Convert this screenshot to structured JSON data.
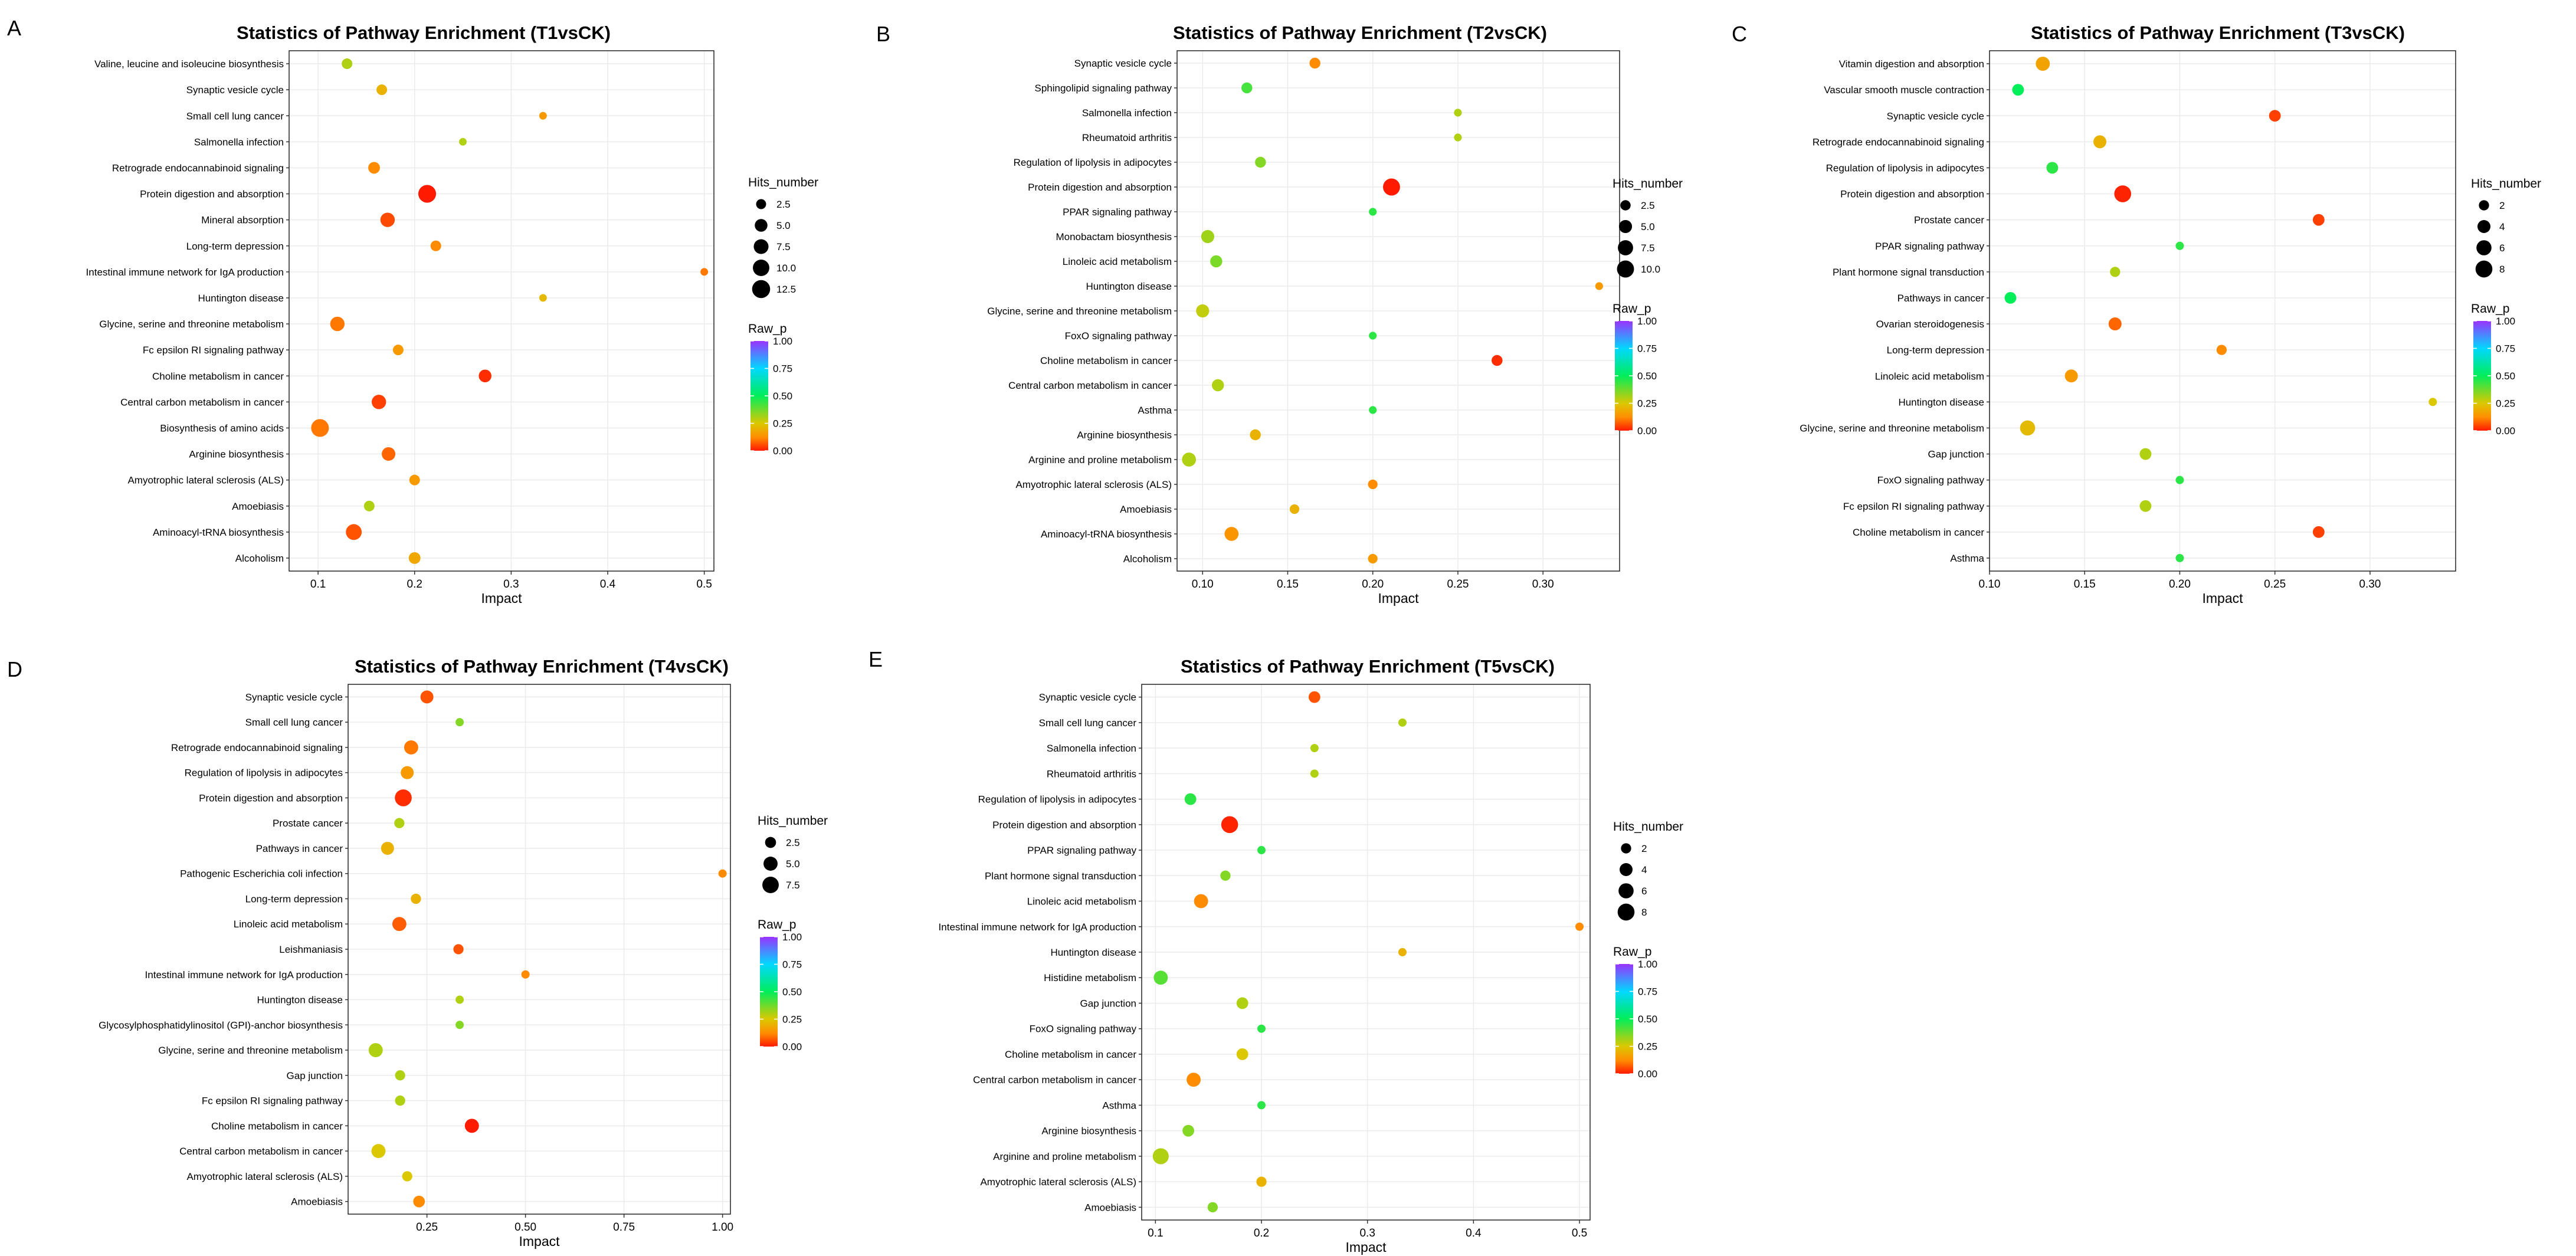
{
  "colors": {
    "low": "#ff1a00",
    "c025": "#00ff66",
    "c050": "#00ff66",
    "c075": "#00d8ff",
    "high": "#9932ff",
    "grid": "#ebebeb",
    "frame": "#222222"
  },
  "chart_data": [
    {
      "id": "A",
      "panel_label": "A",
      "type": "scatter",
      "title": "Statistics of Pathway Enrichment (T1vsCK)",
      "xlabel": "Impact",
      "ylabel": "",
      "xlim": [
        0.07,
        0.51
      ],
      "xticks": [
        0.1,
        0.2,
        0.3,
        0.4,
        0.5
      ],
      "xtick_labels": [
        "0.1",
        "0.2",
        "0.3",
        "0.4",
        "0.5"
      ],
      "size_legend": {
        "title": "Hits_number",
        "values": [
          2.5,
          5.0,
          7.5,
          10.0,
          12.5
        ],
        "labels": [
          "2.5",
          "5.0",
          "7.5",
          "10.0",
          "12.5"
        ],
        "max": 14
      },
      "color_legend": {
        "title": "Raw_p",
        "ticks": [
          1.0,
          0.75,
          0.5,
          0.25,
          0.0
        ],
        "labels": [
          "1.00",
          "0.75",
          "0.50",
          "0.25",
          "0.00"
        ]
      },
      "points": [
        {
          "pathway": "Valine, leucine and isoleucine biosynthesis",
          "impact": 0.13,
          "hits": 3,
          "raw_p": 0.3
        },
        {
          "pathway": "Synaptic vesicle cycle",
          "impact": 0.166,
          "hits": 3,
          "raw_p": 0.2
        },
        {
          "pathway": "Small cell lung cancer",
          "impact": 0.333,
          "hits": 1,
          "raw_p": 0.15
        },
        {
          "pathway": "Salmonella infection",
          "impact": 0.25,
          "hits": 1,
          "raw_p": 0.3
        },
        {
          "pathway": "Retrograde endocannabinoid signaling",
          "impact": 0.158,
          "hits": 4,
          "raw_p": 0.12
        },
        {
          "pathway": "Protein digestion and absorption",
          "impact": 0.213,
          "hits": 12,
          "raw_p": 0.0
        },
        {
          "pathway": "Mineral absorption",
          "impact": 0.172,
          "hits": 7,
          "raw_p": 0.05
        },
        {
          "pathway": "Long-term depression",
          "impact": 0.222,
          "hits": 3,
          "raw_p": 0.12
        },
        {
          "pathway": "Intestinal immune network for IgA production",
          "impact": 0.5,
          "hits": 1,
          "raw_p": 0.1
        },
        {
          "pathway": "Huntington disease",
          "impact": 0.333,
          "hits": 1,
          "raw_p": 0.22
        },
        {
          "pathway": "Glycine, serine and threonine metabolism",
          "impact": 0.12,
          "hits": 7,
          "raw_p": 0.1
        },
        {
          "pathway": "Fc epsilon RI signaling pathway",
          "impact": 0.183,
          "hits": 3,
          "raw_p": 0.15
        },
        {
          "pathway": "Choline metabolism in cancer",
          "impact": 0.273,
          "hits": 5,
          "raw_p": 0.02
        },
        {
          "pathway": "Central carbon metabolism in cancer",
          "impact": 0.163,
          "hits": 7,
          "raw_p": 0.04
        },
        {
          "pathway": "Biosynthesis of amino acids",
          "impact": 0.102,
          "hits": 12,
          "raw_p": 0.1
        },
        {
          "pathway": "Arginine biosynthesis",
          "impact": 0.173,
          "hits": 6,
          "raw_p": 0.08
        },
        {
          "pathway": "Amyotrophic lateral sclerosis (ALS)",
          "impact": 0.2,
          "hits": 3,
          "raw_p": 0.15
        },
        {
          "pathway": "Amoebiasis",
          "impact": 0.153,
          "hits": 3,
          "raw_p": 0.3
        },
        {
          "pathway": "Aminoacyl-tRNA biosynthesis",
          "impact": 0.137,
          "hits": 9,
          "raw_p": 0.06
        },
        {
          "pathway": "Alcoholism",
          "impact": 0.2,
          "hits": 4,
          "raw_p": 0.18
        }
      ]
    },
    {
      "id": "B",
      "panel_label": "B",
      "type": "scatter",
      "title": "Statistics of Pathway Enrichment (T2vsCK)",
      "xlabel": "Impact",
      "ylabel": "",
      "xlim": [
        0.085,
        0.345
      ],
      "xticks": [
        0.1,
        0.15,
        0.2,
        0.25,
        0.3
      ],
      "xtick_labels": [
        "0.10",
        "0.15",
        "0.20",
        "0.25",
        "0.30"
      ],
      "size_legend": {
        "title": "Hits_number",
        "values": [
          2.5,
          5.0,
          7.5,
          10.0
        ],
        "labels": [
          "2.5",
          "5.0",
          "7.5",
          "10.0"
        ],
        "max": 11
      },
      "color_legend": {
        "title": "Raw_p",
        "ticks": [
          1.0,
          0.75,
          0.5,
          0.25,
          0.0
        ],
        "labels": [
          "1.00",
          "0.75",
          "0.50",
          "0.25",
          "0.00"
        ]
      },
      "points": [
        {
          "pathway": "Synaptic vesicle cycle",
          "impact": 0.166,
          "hits": 3,
          "raw_p": 0.12
        },
        {
          "pathway": "Sphingolipid signaling pathway",
          "impact": 0.126,
          "hits": 3,
          "raw_p": 0.42
        },
        {
          "pathway": "Salmonella infection",
          "impact": 0.25,
          "hits": 1,
          "raw_p": 0.3
        },
        {
          "pathway": "Rheumatoid arthritis",
          "impact": 0.25,
          "hits": 1,
          "raw_p": 0.3
        },
        {
          "pathway": "Regulation of lipolysis in adipocytes",
          "impact": 0.134,
          "hits": 3,
          "raw_p": 0.35
        },
        {
          "pathway": "Protein digestion and absorption",
          "impact": 0.211,
          "hits": 10,
          "raw_p": 0.0
        },
        {
          "pathway": "PPAR signaling pathway",
          "impact": 0.2,
          "hits": 1,
          "raw_p": 0.45
        },
        {
          "pathway": "Monobactam biosynthesis",
          "impact": 0.103,
          "hits": 5,
          "raw_p": 0.32
        },
        {
          "pathway": "Linoleic acid metabolism",
          "impact": 0.108,
          "hits": 4,
          "raw_p": 0.36
        },
        {
          "pathway": "Huntington disease",
          "impact": 0.333,
          "hits": 1,
          "raw_p": 0.15
        },
        {
          "pathway": "Glycine, serine and threonine metabolism",
          "impact": 0.1,
          "hits": 5,
          "raw_p": 0.28
        },
        {
          "pathway": "FoxO signaling pathway",
          "impact": 0.2,
          "hits": 1,
          "raw_p": 0.45
        },
        {
          "pathway": "Choline metabolism in cancer",
          "impact": 0.273,
          "hits": 3,
          "raw_p": 0.02
        },
        {
          "pathway": "Central carbon metabolism in cancer",
          "impact": 0.109,
          "hits": 4,
          "raw_p": 0.3
        },
        {
          "pathway": "Asthma",
          "impact": 0.2,
          "hits": 1,
          "raw_p": 0.45
        },
        {
          "pathway": "Arginine biosynthesis",
          "impact": 0.131,
          "hits": 3,
          "raw_p": 0.2
        },
        {
          "pathway": "Arginine and proline metabolism",
          "impact": 0.092,
          "hits": 6,
          "raw_p": 0.3
        },
        {
          "pathway": "Amyotrophic lateral sclerosis (ALS)",
          "impact": 0.2,
          "hits": 2,
          "raw_p": 0.12
        },
        {
          "pathway": "Amoebiasis",
          "impact": 0.154,
          "hits": 2,
          "raw_p": 0.2
        },
        {
          "pathway": "Aminoacyl-tRNA biosynthesis",
          "impact": 0.117,
          "hits": 6,
          "raw_p": 0.14
        },
        {
          "pathway": "Alcoholism",
          "impact": 0.2,
          "hits": 2,
          "raw_p": 0.15
        }
      ]
    },
    {
      "id": "C",
      "panel_label": "C",
      "type": "scatter",
      "title": "Statistics of Pathway Enrichment (T3vsCK)",
      "xlabel": "Impact",
      "ylabel": "",
      "xlim": [
        0.1,
        0.345
      ],
      "xticks": [
        0.1,
        0.15,
        0.2,
        0.25,
        0.3
      ],
      "xtick_labels": [
        "0.10",
        "0.15",
        "0.20",
        "0.25",
        "0.30"
      ],
      "size_legend": {
        "title": "Hits_number",
        "values": [
          2,
          4,
          6,
          8
        ],
        "labels": [
          "2",
          "4",
          "6",
          "8"
        ],
        "max": 9
      },
      "color_legend": {
        "title": "Raw_p",
        "ticks": [
          1.0,
          0.75,
          0.5,
          0.25,
          0.0
        ],
        "labels": [
          "1.00",
          "0.75",
          "0.50",
          "0.25",
          "0.00"
        ]
      },
      "points": [
        {
          "pathway": "Vitamin digestion and absorption",
          "impact": 0.128,
          "hits": 5,
          "raw_p": 0.17
        },
        {
          "pathway": "Vascular smooth muscle contraction",
          "impact": 0.115,
          "hits": 3,
          "raw_p": 0.5
        },
        {
          "pathway": "Synaptic vesicle cycle",
          "impact": 0.25,
          "hits": 3,
          "raw_p": 0.04
        },
        {
          "pathway": "Retrograde endocannabinoid signaling",
          "impact": 0.158,
          "hits": 4,
          "raw_p": 0.2
        },
        {
          "pathway": "Regulation of lipolysis in adipocytes",
          "impact": 0.133,
          "hits": 3,
          "raw_p": 0.45
        },
        {
          "pathway": "Protein digestion and absorption",
          "impact": 0.17,
          "hits": 8,
          "raw_p": 0.01
        },
        {
          "pathway": "Prostate cancer",
          "impact": 0.273,
          "hits": 3,
          "raw_p": 0.04
        },
        {
          "pathway": "PPAR signaling pathway",
          "impact": 0.2,
          "hits": 1,
          "raw_p": 0.45
        },
        {
          "pathway": "Plant hormone signal transduction",
          "impact": 0.166,
          "hits": 2,
          "raw_p": 0.3
        },
        {
          "pathway": "Pathways in cancer",
          "impact": 0.111,
          "hits": 3,
          "raw_p": 0.5
        },
        {
          "pathway": "Ovarian steroidogenesis",
          "impact": 0.166,
          "hits": 4,
          "raw_p": 0.08
        },
        {
          "pathway": "Long-term depression",
          "impact": 0.222,
          "hits": 2,
          "raw_p": 0.12
        },
        {
          "pathway": "Linoleic acid metabolism",
          "impact": 0.143,
          "hits": 4,
          "raw_p": 0.15
        },
        {
          "pathway": "Huntington disease",
          "impact": 0.333,
          "hits": 1,
          "raw_p": 0.25
        },
        {
          "pathway": "Glycine, serine and threonine metabolism",
          "impact": 0.12,
          "hits": 6,
          "raw_p": 0.22
        },
        {
          "pathway": "Gap junction",
          "impact": 0.182,
          "hits": 3,
          "raw_p": 0.3
        },
        {
          "pathway": "FoxO signaling pathway",
          "impact": 0.2,
          "hits": 1,
          "raw_p": 0.45
        },
        {
          "pathway": "Fc epsilon RI signaling pathway",
          "impact": 0.182,
          "hits": 3,
          "raw_p": 0.3
        },
        {
          "pathway": "Choline metabolism in cancer",
          "impact": 0.273,
          "hits": 3,
          "raw_p": 0.04
        },
        {
          "pathway": "Asthma",
          "impact": 0.2,
          "hits": 1,
          "raw_p": 0.45
        }
      ]
    },
    {
      "id": "D",
      "panel_label": "D",
      "type": "scatter",
      "title": "Statistics of Pathway Enrichment (T4vsCK)",
      "xlabel": "Impact",
      "ylabel": "",
      "xlim": [
        0.05,
        1.02
      ],
      "xticks": [
        0.25,
        0.5,
        0.75,
        1.0
      ],
      "xtick_labels": [
        "0.25",
        "0.50",
        "0.75",
        "1.00"
      ],
      "size_legend": {
        "title": "Hits_number",
        "values": [
          2.5,
          5.0,
          7.5
        ],
        "labels": [
          "2.5",
          "5.0",
          "7.5"
        ],
        "max": 9
      },
      "color_legend": {
        "title": "Raw_p",
        "ticks": [
          1.0,
          0.75,
          0.5,
          0.25,
          0.0
        ],
        "labels": [
          "1.00",
          "0.75",
          "0.50",
          "0.25",
          "0.00"
        ]
      },
      "points": [
        {
          "pathway": "Synaptic vesicle cycle",
          "impact": 0.25,
          "hits": 4,
          "raw_p": 0.06
        },
        {
          "pathway": "Small cell lung cancer",
          "impact": 0.333,
          "hits": 1,
          "raw_p": 0.35
        },
        {
          "pathway": "Retrograde endocannabinoid signaling",
          "impact": 0.21,
          "hits": 5,
          "raw_p": 0.1
        },
        {
          "pathway": "Regulation of lipolysis in adipocytes",
          "impact": 0.2,
          "hits": 4,
          "raw_p": 0.15
        },
        {
          "pathway": "Protein digestion and absorption",
          "impact": 0.19,
          "hits": 8,
          "raw_p": 0.02
        },
        {
          "pathway": "Prostate cancer",
          "impact": 0.18,
          "hits": 2,
          "raw_p": 0.3
        },
        {
          "pathway": "Pathways in cancer",
          "impact": 0.15,
          "hits": 4,
          "raw_p": 0.2
        },
        {
          "pathway": "Pathogenic Escherichia coli infection",
          "impact": 1.0,
          "hits": 1,
          "raw_p": 0.12
        },
        {
          "pathway": "Long-term depression",
          "impact": 0.222,
          "hits": 2,
          "raw_p": 0.2
        },
        {
          "pathway": "Linoleic acid metabolism",
          "impact": 0.18,
          "hits": 5,
          "raw_p": 0.07
        },
        {
          "pathway": "Leishmaniasis",
          "impact": 0.33,
          "hits": 2,
          "raw_p": 0.06
        },
        {
          "pathway": "Intestinal immune network for IgA production",
          "impact": 0.5,
          "hits": 1,
          "raw_p": 0.12
        },
        {
          "pathway": "Huntington disease",
          "impact": 0.333,
          "hits": 1,
          "raw_p": 0.3
        },
        {
          "pathway": "Glycosylphosphatidylinositol (GPI)-anchor biosynthesis",
          "impact": 0.333,
          "hits": 1,
          "raw_p": 0.35
        },
        {
          "pathway": "Glycine, serine and threonine metabolism",
          "impact": 0.12,
          "hits": 5,
          "raw_p": 0.3
        },
        {
          "pathway": "Gap junction",
          "impact": 0.182,
          "hits": 2,
          "raw_p": 0.3
        },
        {
          "pathway": "Fc epsilon RI signaling pathway",
          "impact": 0.182,
          "hits": 2,
          "raw_p": 0.3
        },
        {
          "pathway": "Choline metabolism in cancer",
          "impact": 0.364,
          "hits": 5,
          "raw_p": 0.0
        },
        {
          "pathway": "Central carbon metabolism in cancer",
          "impact": 0.127,
          "hits": 5,
          "raw_p": 0.25
        },
        {
          "pathway": "Amyotrophic lateral sclerosis (ALS)",
          "impact": 0.2,
          "hits": 2,
          "raw_p": 0.25
        },
        {
          "pathway": "Amoebiasis",
          "impact": 0.23,
          "hits": 3,
          "raw_p": 0.12
        }
      ]
    },
    {
      "id": "E",
      "panel_label": "E",
      "type": "scatter",
      "title": "Statistics of Pathway Enrichment (T5vsCK)",
      "xlabel": "Impact",
      "ylabel": "",
      "xlim": [
        0.087,
        0.51
      ],
      "xticks": [
        0.1,
        0.2,
        0.3,
        0.4,
        0.5
      ],
      "xtick_labels": [
        "0.1",
        "0.2",
        "0.3",
        "0.4",
        "0.5"
      ],
      "size_legend": {
        "title": "Hits_number",
        "values": [
          2,
          4,
          6,
          8
        ],
        "labels": [
          "2",
          "4",
          "6",
          "8"
        ],
        "max": 9
      },
      "color_legend": {
        "title": "Raw_p",
        "ticks": [
          1.0,
          0.75,
          0.5,
          0.25,
          0.0
        ],
        "labels": [
          "1.00",
          "0.75",
          "0.50",
          "0.25",
          "0.00"
        ]
      },
      "points": [
        {
          "pathway": "Synaptic vesicle cycle",
          "impact": 0.25,
          "hits": 3,
          "raw_p": 0.06
        },
        {
          "pathway": "Small cell lung cancer",
          "impact": 0.333,
          "hits": 1,
          "raw_p": 0.3
        },
        {
          "pathway": "Salmonella infection",
          "impact": 0.25,
          "hits": 1,
          "raw_p": 0.3
        },
        {
          "pathway": "Rheumatoid arthritis",
          "impact": 0.25,
          "hits": 1,
          "raw_p": 0.3
        },
        {
          "pathway": "Regulation of lipolysis in adipocytes",
          "impact": 0.133,
          "hits": 3,
          "raw_p": 0.45
        },
        {
          "pathway": "Protein digestion and absorption",
          "impact": 0.17,
          "hits": 8,
          "raw_p": 0.01
        },
        {
          "pathway": "PPAR signaling pathway",
          "impact": 0.2,
          "hits": 1,
          "raw_p": 0.45
        },
        {
          "pathway": "Plant hormone signal transduction",
          "impact": 0.166,
          "hits": 2,
          "raw_p": 0.35
        },
        {
          "pathway": "Linoleic acid metabolism",
          "impact": 0.143,
          "hits": 5,
          "raw_p": 0.12
        },
        {
          "pathway": "Intestinal immune network for IgA production",
          "impact": 0.5,
          "hits": 1,
          "raw_p": 0.12
        },
        {
          "pathway": "Huntington disease",
          "impact": 0.333,
          "hits": 1,
          "raw_p": 0.2
        },
        {
          "pathway": "Histidine metabolism",
          "impact": 0.105,
          "hits": 5,
          "raw_p": 0.4
        },
        {
          "pathway": "Gap junction",
          "impact": 0.182,
          "hits": 3,
          "raw_p": 0.3
        },
        {
          "pathway": "FoxO signaling pathway",
          "impact": 0.2,
          "hits": 1,
          "raw_p": 0.45
        },
        {
          "pathway": "Choline metabolism in cancer",
          "impact": 0.182,
          "hits": 3,
          "raw_p": 0.25
        },
        {
          "pathway": "Central carbon metabolism in cancer",
          "impact": 0.136,
          "hits": 5,
          "raw_p": 0.12
        },
        {
          "pathway": "Asthma",
          "impact": 0.2,
          "hits": 1,
          "raw_p": 0.45
        },
        {
          "pathway": "Arginine biosynthesis",
          "impact": 0.131,
          "hits": 3,
          "raw_p": 0.35
        },
        {
          "pathway": "Arginine and proline metabolism",
          "impact": 0.105,
          "hits": 7,
          "raw_p": 0.3
        },
        {
          "pathway": "Amyotrophic lateral sclerosis (ALS)",
          "impact": 0.2,
          "hits": 2,
          "raw_p": 0.2
        },
        {
          "pathway": "Amoebiasis",
          "impact": 0.154,
          "hits": 2,
          "raw_p": 0.35
        }
      ]
    }
  ]
}
